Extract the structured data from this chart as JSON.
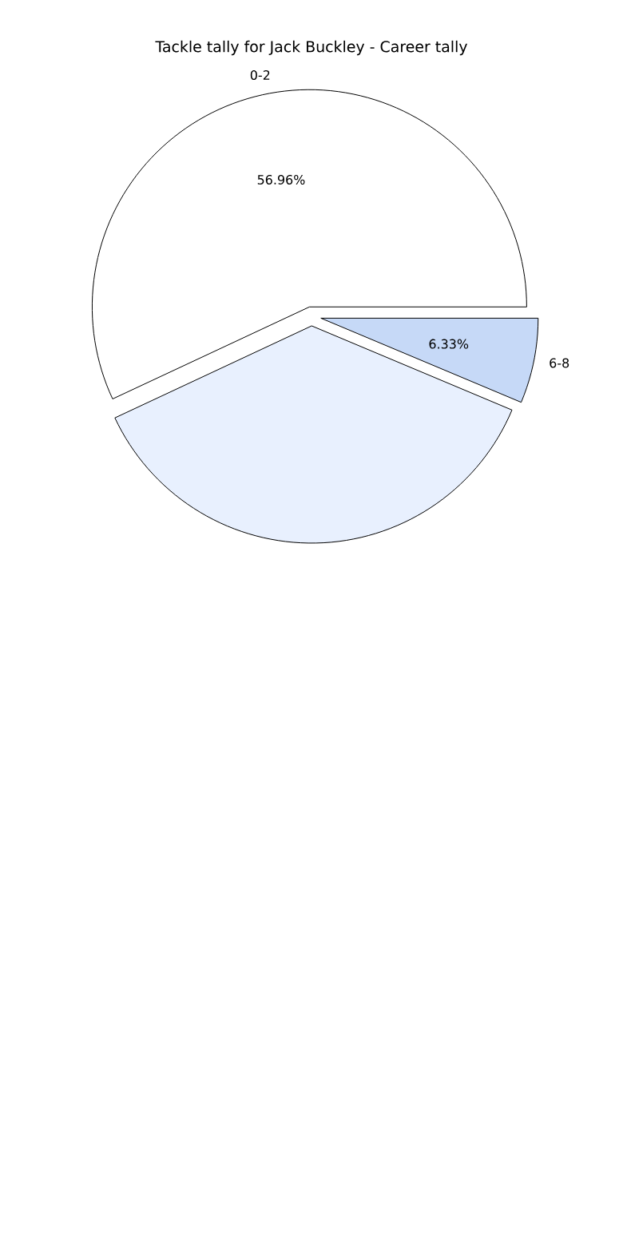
{
  "chart_data": {
    "type": "pie",
    "title": "Tackle tally for Jack Buckley - Career tally",
    "categories": [
      "0-2",
      null,
      "6-8"
    ],
    "values": [
      56.96,
      36.71,
      6.33
    ],
    "colors": [
      "#ffffff",
      "#e8f0fe",
      "#c6d9f7"
    ],
    "value_labels": [
      "56.96%",
      null,
      "6.33%"
    ]
  }
}
